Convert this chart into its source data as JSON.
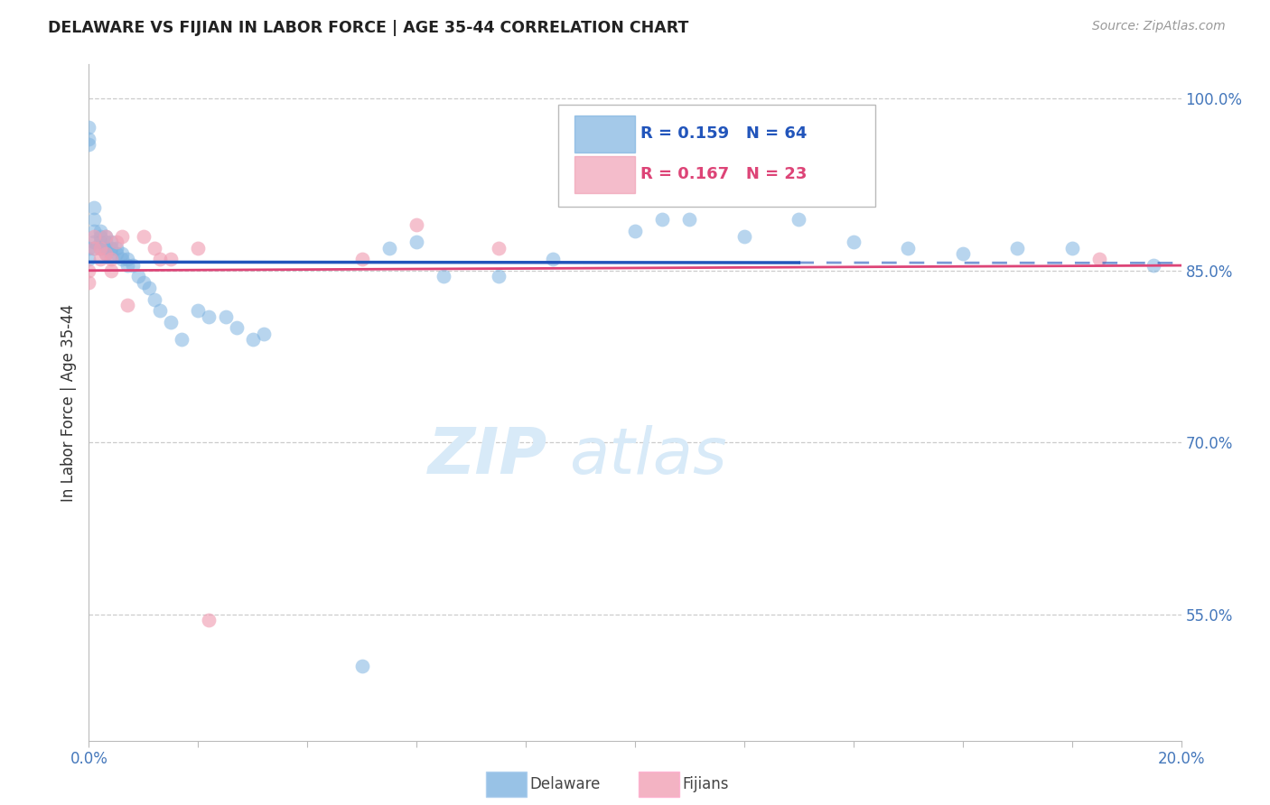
{
  "title": "DELAWARE VS FIJIAN IN LABOR FORCE | AGE 35-44 CORRELATION CHART",
  "source": "Source: ZipAtlas.com",
  "ylabel": "In Labor Force | Age 35-44",
  "xlim": [
    0.0,
    0.2
  ],
  "ylim": [
    0.44,
    1.03
  ],
  "ytick_positions": [
    0.55,
    0.7,
    0.85,
    1.0
  ],
  "ytick_labels": [
    "55.0%",
    "70.0%",
    "85.0%",
    "100.0%"
  ],
  "delaware_color": "#7eb3e0",
  "fijian_color": "#f0a0b5",
  "trend_delaware_color": "#2255bb",
  "trend_fijian_color": "#dd4477",
  "watermark_color": "#d8eaf8",
  "delaware_x": [
    0.0,
    0.0,
    0.0,
    0.0,
    0.0,
    0.001,
    0.001,
    0.001,
    0.001,
    0.001,
    0.002,
    0.002,
    0.002,
    0.002,
    0.003,
    0.003,
    0.003,
    0.003,
    0.004,
    0.004,
    0.004,
    0.005,
    0.005,
    0.006,
    0.006,
    0.007,
    0.007,
    0.008,
    0.009,
    0.01,
    0.011,
    0.012,
    0.013,
    0.015,
    0.017,
    0.02,
    0.022,
    0.025,
    0.027,
    0.03,
    0.032,
    0.05,
    0.055,
    0.06,
    0.065,
    0.075,
    0.085,
    0.1,
    0.105,
    0.11,
    0.12,
    0.13,
    0.14,
    0.15,
    0.16,
    0.17,
    0.18,
    0.195
  ],
  "delaware_y": [
    0.975,
    0.965,
    0.96,
    0.87,
    0.86,
    0.905,
    0.895,
    0.885,
    0.875,
    0.87,
    0.885,
    0.88,
    0.875,
    0.87,
    0.88,
    0.875,
    0.87,
    0.865,
    0.875,
    0.87,
    0.865,
    0.87,
    0.865,
    0.865,
    0.86,
    0.86,
    0.855,
    0.855,
    0.845,
    0.84,
    0.835,
    0.825,
    0.815,
    0.805,
    0.79,
    0.815,
    0.81,
    0.81,
    0.8,
    0.79,
    0.795,
    0.505,
    0.87,
    0.875,
    0.845,
    0.845,
    0.86,
    0.885,
    0.895,
    0.895,
    0.88,
    0.895,
    0.875,
    0.87,
    0.865,
    0.87,
    0.87,
    0.855
  ],
  "fijian_x": [
    0.0,
    0.0,
    0.001,
    0.001,
    0.002,
    0.002,
    0.003,
    0.003,
    0.004,
    0.004,
    0.005,
    0.006,
    0.007,
    0.01,
    0.012,
    0.013,
    0.015,
    0.02,
    0.022,
    0.05,
    0.06,
    0.075,
    0.185
  ],
  "fijian_y": [
    0.85,
    0.84,
    0.88,
    0.87,
    0.87,
    0.86,
    0.88,
    0.865,
    0.86,
    0.85,
    0.875,
    0.88,
    0.82,
    0.88,
    0.87,
    0.86,
    0.86,
    0.87,
    0.545,
    0.86,
    0.89,
    0.87,
    0.86
  ]
}
